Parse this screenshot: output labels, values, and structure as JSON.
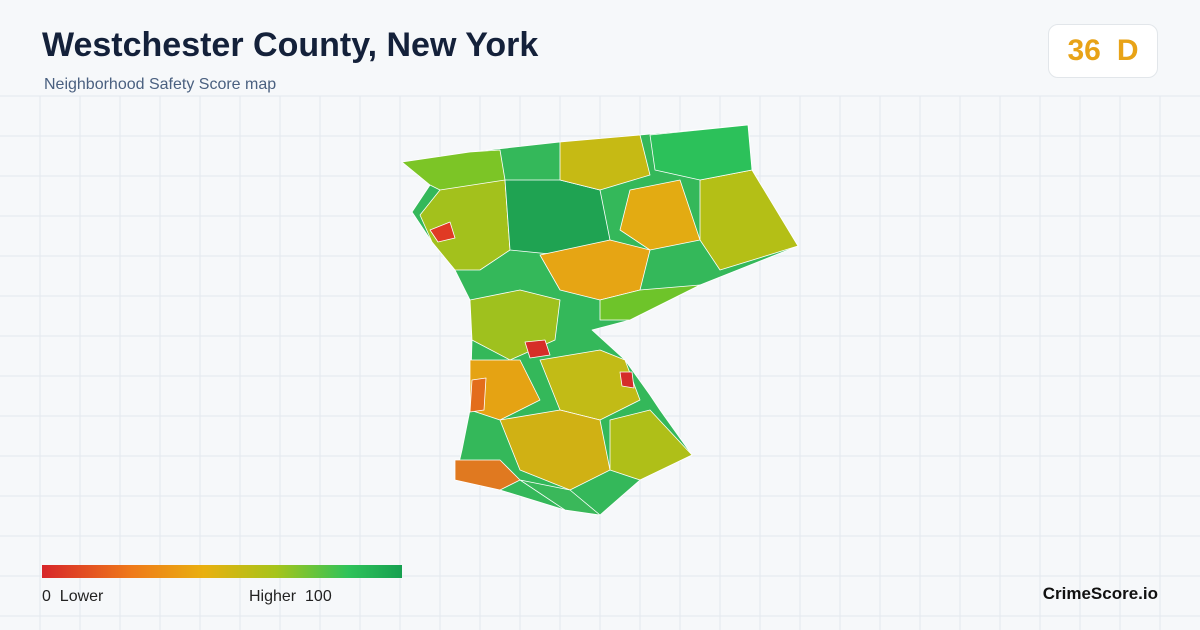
{
  "header": {
    "title": "Westchester County, New York",
    "subtitle": "Neighborhood Safety Score map"
  },
  "badge": {
    "score": 36,
    "grade": "D"
  },
  "legend": {
    "min": 0,
    "min_label": "Lower",
    "max_label": "Higher",
    "max": 100
  },
  "footer": {
    "brand": "CrimeScore.io"
  }
}
